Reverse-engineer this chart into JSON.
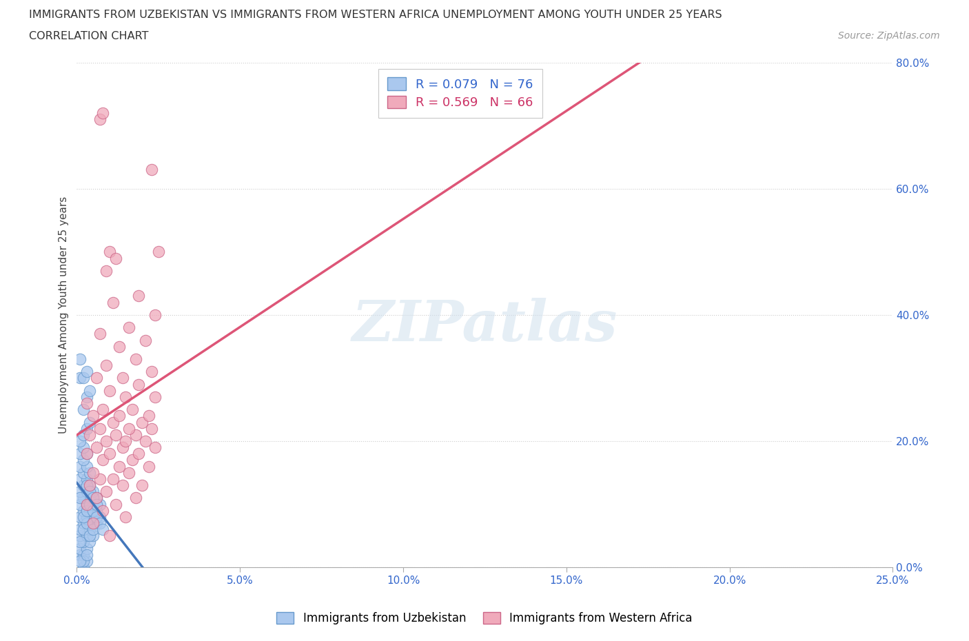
{
  "title_line1": "IMMIGRANTS FROM UZBEKISTAN VS IMMIGRANTS FROM WESTERN AFRICA UNEMPLOYMENT AMONG YOUTH UNDER 25 YEARS",
  "title_line2": "CORRELATION CHART",
  "source_text": "Source: ZipAtlas.com",
  "ylabel_label": "Unemployment Among Youth under 25 years",
  "watermark_text": "ZIPatlas",
  "background_color": "#ffffff",
  "grid_color": "#cccccc",
  "uzbekistan_scatter_color": "#aac8ee",
  "uzbekistan_edge_color": "#6699cc",
  "western_africa_scatter_color": "#f0aabb",
  "western_africa_edge_color": "#cc6688",
  "uzbekistan_line_color": "#4477bb",
  "western_africa_line_color": "#dd5577",
  "uzbekistan_r": 0.079,
  "uzbekistan_n": 76,
  "western_africa_r": 0.569,
  "western_africa_n": 66,
  "xlim": [
    0.0,
    0.25
  ],
  "ylim": [
    0.0,
    0.8
  ],
  "x_tick_vals": [
    0.0,
    0.05,
    0.1,
    0.15,
    0.2,
    0.25
  ],
  "x_tick_labels": [
    "0.0%",
    "5.0%",
    "10.0%",
    "15.0%",
    "20.0%",
    "25.0%"
  ],
  "y_tick_vals": [
    0.0,
    0.2,
    0.4,
    0.6,
    0.8
  ],
  "y_tick_labels": [
    "0.0%",
    "20.0%",
    "40.0%",
    "60.0%",
    "80.0%"
  ],
  "legend_bottom": [
    "Immigrants from Uzbekistan",
    "Immigrants from Western Africa"
  ],
  "uzbekistan_scatter": [
    [
      0.002,
      0.0
    ],
    [
      0.003,
      0.01
    ],
    [
      0.001,
      0.02
    ],
    [
      0.002,
      0.02
    ],
    [
      0.001,
      0.03
    ],
    [
      0.003,
      0.03
    ],
    [
      0.002,
      0.04
    ],
    [
      0.004,
      0.04
    ],
    [
      0.001,
      0.05
    ],
    [
      0.003,
      0.05
    ],
    [
      0.005,
      0.05
    ],
    [
      0.001,
      0.06
    ],
    [
      0.004,
      0.06
    ],
    [
      0.002,
      0.07
    ],
    [
      0.004,
      0.07
    ],
    [
      0.006,
      0.07
    ],
    [
      0.001,
      0.08
    ],
    [
      0.003,
      0.08
    ],
    [
      0.005,
      0.08
    ],
    [
      0.007,
      0.08
    ],
    [
      0.002,
      0.09
    ],
    [
      0.004,
      0.09
    ],
    [
      0.006,
      0.09
    ],
    [
      0.001,
      0.1
    ],
    [
      0.003,
      0.1
    ],
    [
      0.005,
      0.1
    ],
    [
      0.007,
      0.1
    ],
    [
      0.002,
      0.11
    ],
    [
      0.004,
      0.11
    ],
    [
      0.006,
      0.11
    ],
    [
      0.001,
      0.12
    ],
    [
      0.003,
      0.12
    ],
    [
      0.005,
      0.12
    ],
    [
      0.002,
      0.13
    ],
    [
      0.004,
      0.13
    ],
    [
      0.001,
      0.14
    ],
    [
      0.003,
      0.14
    ],
    [
      0.002,
      0.15
    ],
    [
      0.004,
      0.15
    ],
    [
      0.001,
      0.16
    ],
    [
      0.003,
      0.16
    ],
    [
      0.002,
      0.17
    ],
    [
      0.001,
      0.18
    ],
    [
      0.003,
      0.18
    ],
    [
      0.002,
      0.19
    ],
    [
      0.001,
      0.2
    ],
    [
      0.002,
      0.21
    ],
    [
      0.003,
      0.22
    ],
    [
      0.004,
      0.23
    ],
    [
      0.002,
      0.25
    ],
    [
      0.003,
      0.27
    ],
    [
      0.004,
      0.28
    ],
    [
      0.001,
      0.3
    ],
    [
      0.002,
      0.3
    ],
    [
      0.003,
      0.31
    ],
    [
      0.001,
      0.33
    ],
    [
      0.002,
      0.01
    ],
    [
      0.001,
      0.01
    ],
    [
      0.003,
      0.02
    ],
    [
      0.001,
      0.04
    ],
    [
      0.002,
      0.06
    ],
    [
      0.003,
      0.07
    ],
    [
      0.004,
      0.05
    ],
    [
      0.005,
      0.06
    ],
    [
      0.002,
      0.08
    ],
    [
      0.003,
      0.09
    ],
    [
      0.001,
      0.11
    ],
    [
      0.004,
      0.1
    ],
    [
      0.005,
      0.09
    ],
    [
      0.006,
      0.08
    ],
    [
      0.007,
      0.07
    ],
    [
      0.008,
      0.06
    ],
    [
      0.003,
      0.13
    ],
    [
      0.004,
      0.12
    ],
    [
      0.005,
      0.11
    ],
    [
      0.006,
      0.1
    ]
  ],
  "western_africa_scatter": [
    [
      0.01,
      0.05
    ],
    [
      0.005,
      0.07
    ],
    [
      0.015,
      0.08
    ],
    [
      0.008,
      0.09
    ],
    [
      0.003,
      0.1
    ],
    [
      0.012,
      0.1
    ],
    [
      0.006,
      0.11
    ],
    [
      0.018,
      0.11
    ],
    [
      0.009,
      0.12
    ],
    [
      0.004,
      0.13
    ],
    [
      0.014,
      0.13
    ],
    [
      0.02,
      0.13
    ],
    [
      0.007,
      0.14
    ],
    [
      0.011,
      0.14
    ],
    [
      0.016,
      0.15
    ],
    [
      0.005,
      0.15
    ],
    [
      0.013,
      0.16
    ],
    [
      0.022,
      0.16
    ],
    [
      0.008,
      0.17
    ],
    [
      0.017,
      0.17
    ],
    [
      0.003,
      0.18
    ],
    [
      0.01,
      0.18
    ],
    [
      0.019,
      0.18
    ],
    [
      0.006,
      0.19
    ],
    [
      0.014,
      0.19
    ],
    [
      0.024,
      0.19
    ],
    [
      0.009,
      0.2
    ],
    [
      0.015,
      0.2
    ],
    [
      0.021,
      0.2
    ],
    [
      0.004,
      0.21
    ],
    [
      0.012,
      0.21
    ],
    [
      0.018,
      0.21
    ],
    [
      0.007,
      0.22
    ],
    [
      0.016,
      0.22
    ],
    [
      0.023,
      0.22
    ],
    [
      0.011,
      0.23
    ],
    [
      0.02,
      0.23
    ],
    [
      0.005,
      0.24
    ],
    [
      0.013,
      0.24
    ],
    [
      0.022,
      0.24
    ],
    [
      0.008,
      0.25
    ],
    [
      0.017,
      0.25
    ],
    [
      0.003,
      0.26
    ],
    [
      0.015,
      0.27
    ],
    [
      0.024,
      0.27
    ],
    [
      0.01,
      0.28
    ],
    [
      0.019,
      0.29
    ],
    [
      0.006,
      0.3
    ],
    [
      0.014,
      0.3
    ],
    [
      0.023,
      0.31
    ],
    [
      0.009,
      0.32
    ],
    [
      0.018,
      0.33
    ],
    [
      0.013,
      0.35
    ],
    [
      0.021,
      0.36
    ],
    [
      0.007,
      0.37
    ],
    [
      0.016,
      0.38
    ],
    [
      0.024,
      0.4
    ],
    [
      0.011,
      0.42
    ],
    [
      0.019,
      0.43
    ],
    [
      0.009,
      0.47
    ],
    [
      0.023,
      0.63
    ],
    [
      0.007,
      0.71
    ],
    [
      0.008,
      0.72
    ],
    [
      0.01,
      0.5
    ],
    [
      0.012,
      0.49
    ],
    [
      0.025,
      0.5
    ]
  ]
}
